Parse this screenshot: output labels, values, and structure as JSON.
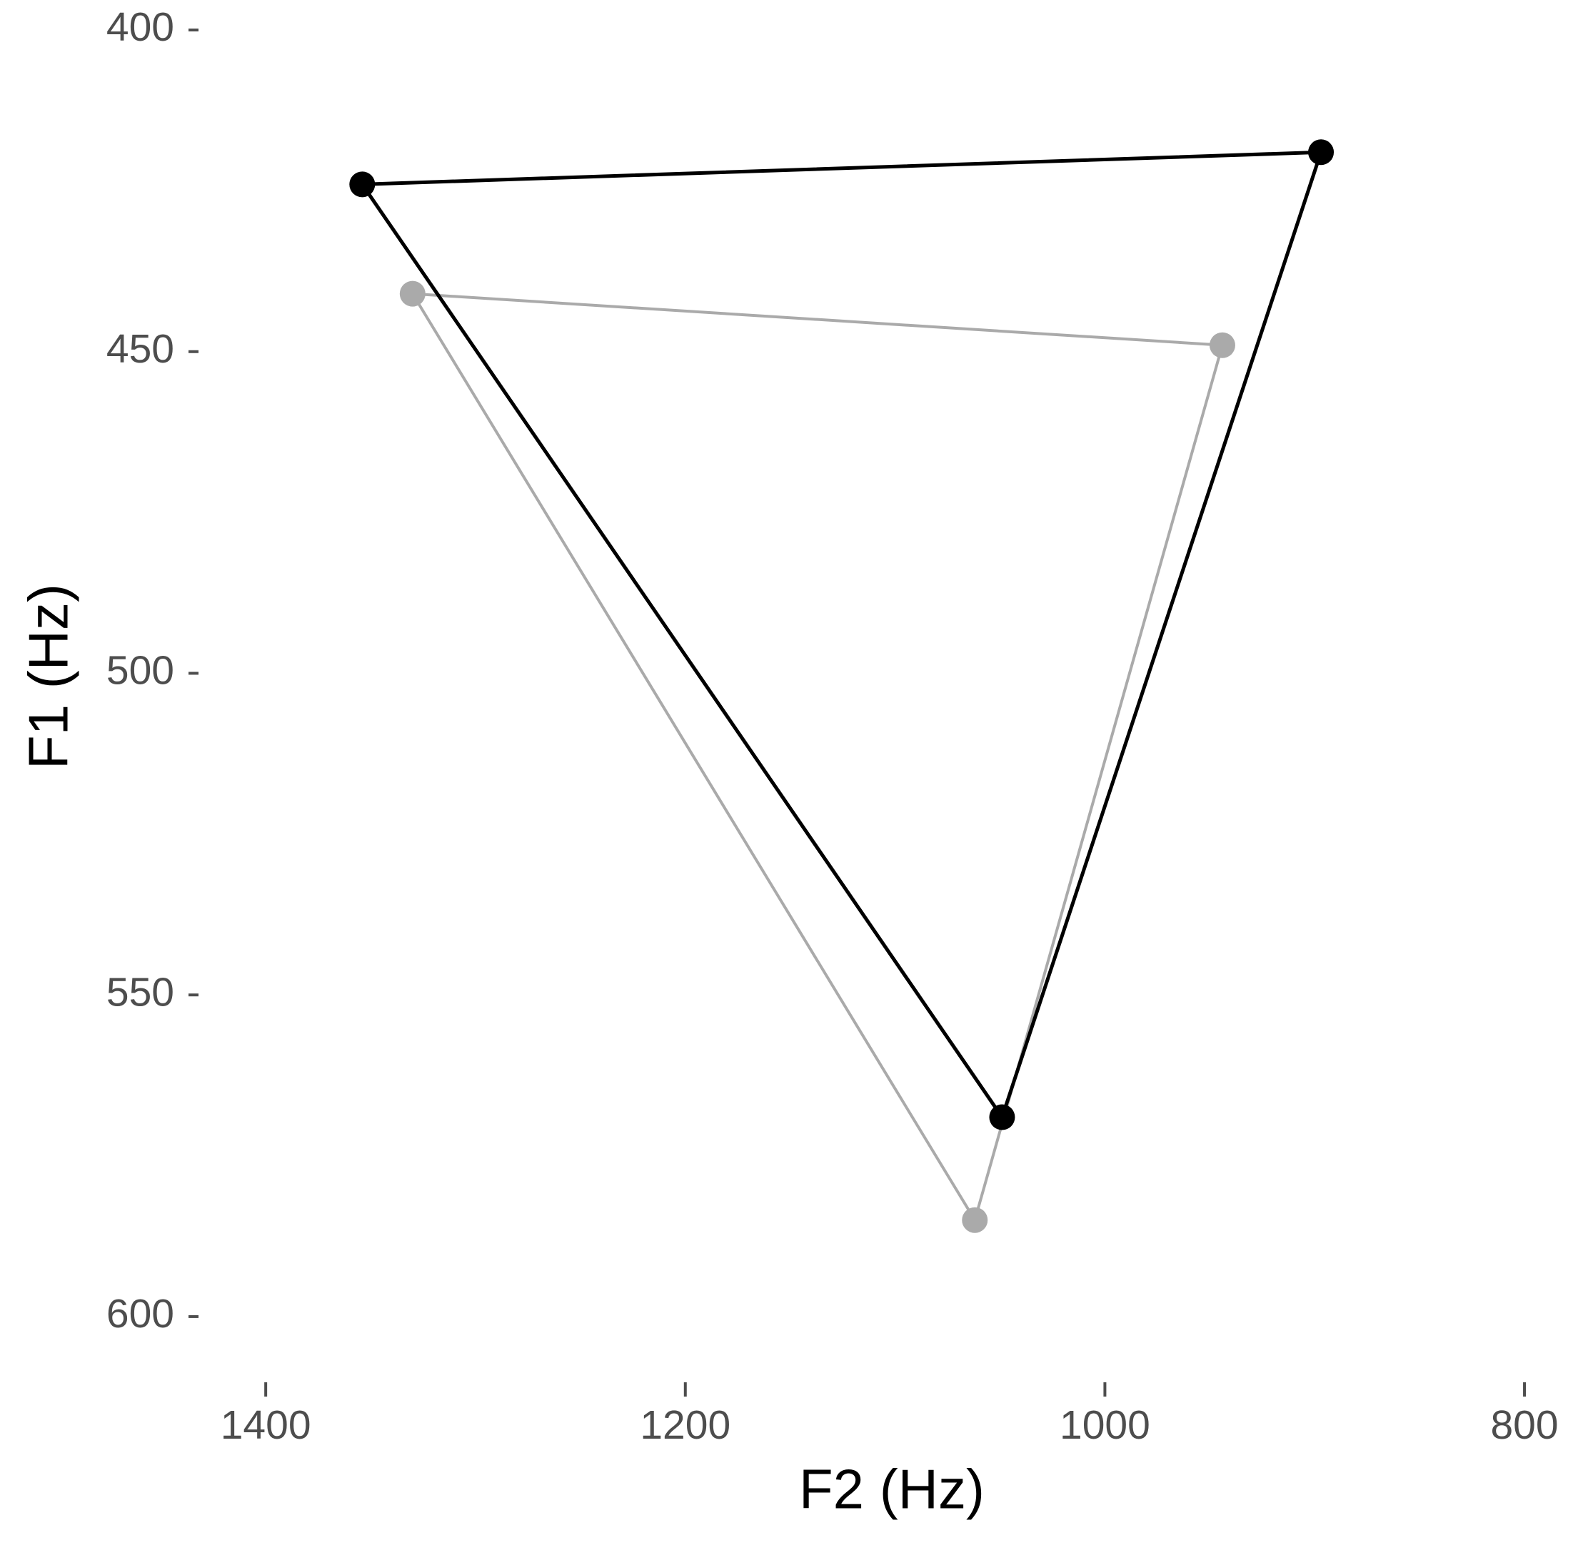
{
  "chart_data": {
    "type": "polygon",
    "x_label": "F2 (Hz)",
    "y_label": "F1 (Hz)",
    "xlim": [
      1430,
      783
    ],
    "ylim": [
      398,
      606
    ],
    "xticks": [
      1400,
      1200,
      1000,
      800
    ],
    "yticks": [
      400,
      450,
      500,
      550,
      600
    ],
    "series": [
      {
        "color": "#000000",
        "x": [
          1354,
          897,
          1049
        ],
        "values": [
          424,
          419,
          569
        ]
      },
      {
        "color": "#aaaaaa",
        "x": [
          1330,
          944,
          1062
        ],
        "values": [
          441,
          449,
          585
        ]
      }
    ]
  }
}
